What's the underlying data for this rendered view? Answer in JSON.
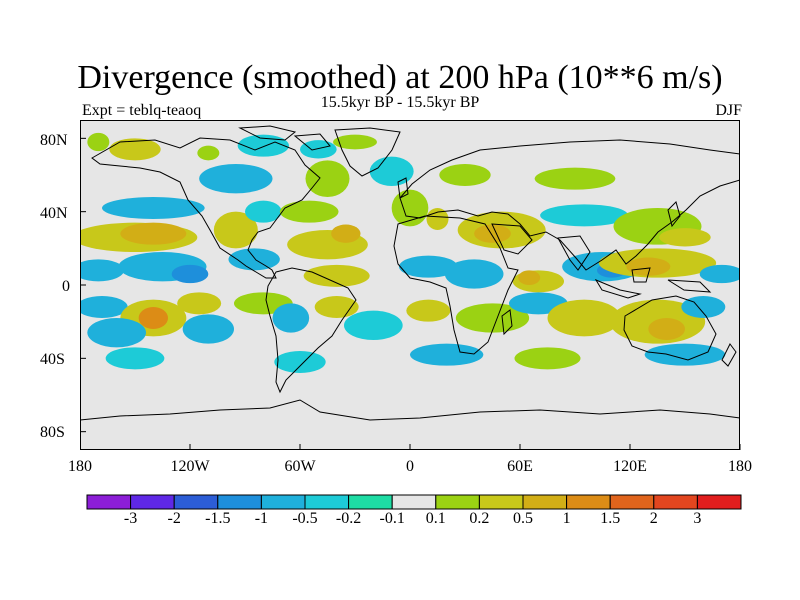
{
  "title": "Divergence (smoothed) at 200 hPa (10**6 m/s)",
  "subtitle": "15.5kyr BP - 15.5kyr BP",
  "left_label": "Expt = teblq-teaoq",
  "right_label": "DJF",
  "lat_ticks": [
    "80N",
    "40N",
    "0",
    "40S",
    "80S"
  ],
  "lon_ticks": [
    "180",
    "120W",
    "60W",
    "0",
    "60E",
    "120E",
    "180"
  ],
  "colorbar": {
    "colors": [
      "#8c1ed7",
      "#5f28e6",
      "#2c5dd6",
      "#1e8fdb",
      "#1fb0db",
      "#1dcbd7",
      "#1edca4",
      "#e6e6e6",
      "#9bd213",
      "#c8c81a",
      "#d2ae16",
      "#dc8c16",
      "#e0641c",
      "#e2461f",
      "#e11e1e"
    ],
    "labels": [
      "-3",
      "-2",
      "-1.5",
      "-1",
      "-0.5",
      "-0.2",
      "-0.1",
      "0.1",
      "0.2",
      "0.5",
      "1",
      "1.5",
      "2",
      "3"
    ]
  },
  "map_data": {
    "background": "#e6e6e6",
    "blobs": [
      {
        "lon": -170,
        "lat": 78,
        "rx": 6,
        "ry": 5,
        "level": "pos1"
      },
      {
        "lon": -150,
        "lat": 74,
        "rx": 14,
        "ry": 6,
        "level": "pos2"
      },
      {
        "lon": -110,
        "lat": 72,
        "rx": 6,
        "ry": 4,
        "level": "pos1"
      },
      {
        "lon": -80,
        "lat": 76,
        "rx": 14,
        "ry": 6,
        "level": "neg1"
      },
      {
        "lon": -50,
        "lat": 74,
        "rx": 10,
        "ry": 5,
        "level": "neg1"
      },
      {
        "lon": -30,
        "lat": 78,
        "rx": 12,
        "ry": 4,
        "level": "pos1"
      },
      {
        "lon": -95,
        "lat": 58,
        "rx": 20,
        "ry": 8,
        "level": "neg2"
      },
      {
        "lon": -45,
        "lat": 58,
        "rx": 12,
        "ry": 10,
        "level": "pos1"
      },
      {
        "lon": -10,
        "lat": 62,
        "rx": 12,
        "ry": 8,
        "level": "neg1"
      },
      {
        "lon": 30,
        "lat": 60,
        "rx": 14,
        "ry": 6,
        "level": "pos1"
      },
      {
        "lon": 90,
        "lat": 58,
        "rx": 22,
        "ry": 6,
        "level": "pos1"
      },
      {
        "lon": -140,
        "lat": 42,
        "rx": 28,
        "ry": 6,
        "level": "neg2"
      },
      {
        "lon": -150,
        "lat": 26,
        "rx": 34,
        "ry": 8,
        "level": "pos2"
      },
      {
        "lon": -140,
        "lat": 28,
        "rx": 18,
        "ry": 6,
        "level": "pos3"
      },
      {
        "lon": -95,
        "lat": 30,
        "rx": 12,
        "ry": 10,
        "level": "pos2"
      },
      {
        "lon": -80,
        "lat": 40,
        "rx": 10,
        "ry": 6,
        "level": "neg1"
      },
      {
        "lon": -55,
        "lat": 40,
        "rx": 16,
        "ry": 6,
        "level": "pos1"
      },
      {
        "lon": -45,
        "lat": 22,
        "rx": 22,
        "ry": 8,
        "level": "pos2"
      },
      {
        "lon": -35,
        "lat": 28,
        "rx": 8,
        "ry": 5,
        "level": "pos3"
      },
      {
        "lon": 0,
        "lat": 42,
        "rx": 10,
        "ry": 10,
        "level": "pos1"
      },
      {
        "lon": 15,
        "lat": 36,
        "rx": 6,
        "ry": 6,
        "level": "pos2"
      },
      {
        "lon": 50,
        "lat": 30,
        "rx": 24,
        "ry": 10,
        "level": "pos2"
      },
      {
        "lon": 45,
        "lat": 28,
        "rx": 10,
        "ry": 5,
        "level": "pos3"
      },
      {
        "lon": 95,
        "lat": 38,
        "rx": 24,
        "ry": 6,
        "level": "neg1"
      },
      {
        "lon": 135,
        "lat": 32,
        "rx": 24,
        "ry": 10,
        "level": "pos1"
      },
      {
        "lon": 150,
        "lat": 26,
        "rx": 14,
        "ry": 5,
        "level": "pos2"
      },
      {
        "lon": -170,
        "lat": 8,
        "rx": 14,
        "ry": 6,
        "level": "neg2"
      },
      {
        "lon": -135,
        "lat": 10,
        "rx": 24,
        "ry": 8,
        "level": "neg2"
      },
      {
        "lon": -120,
        "lat": 6,
        "rx": 10,
        "ry": 5,
        "level": "neg3"
      },
      {
        "lon": -85,
        "lat": 14,
        "rx": 14,
        "ry": 6,
        "level": "neg2"
      },
      {
        "lon": -40,
        "lat": 5,
        "rx": 18,
        "ry": 6,
        "level": "pos2"
      },
      {
        "lon": 10,
        "lat": 10,
        "rx": 16,
        "ry": 6,
        "level": "neg2"
      },
      {
        "lon": 35,
        "lat": 6,
        "rx": 16,
        "ry": 8,
        "level": "neg2"
      },
      {
        "lon": 70,
        "lat": 2,
        "rx": 14,
        "ry": 6,
        "level": "pos2"
      },
      {
        "lon": 65,
        "lat": 4,
        "rx": 6,
        "ry": 4,
        "level": "pos3"
      },
      {
        "lon": 105,
        "lat": 10,
        "rx": 22,
        "ry": 8,
        "level": "neg2"
      },
      {
        "lon": 110,
        "lat": 8,
        "rx": 8,
        "ry": 4,
        "level": "neg3"
      },
      {
        "lon": 135,
        "lat": 12,
        "rx": 32,
        "ry": 8,
        "level": "pos2"
      },
      {
        "lon": 130,
        "lat": 10,
        "rx": 12,
        "ry": 5,
        "level": "pos3"
      },
      {
        "lon": 170,
        "lat": 6,
        "rx": 12,
        "ry": 5,
        "level": "neg2"
      },
      {
        "lon": -168,
        "lat": -12,
        "rx": 14,
        "ry": 6,
        "level": "neg2"
      },
      {
        "lon": -140,
        "lat": -18,
        "rx": 18,
        "ry": 10,
        "level": "pos2"
      },
      {
        "lon": -140,
        "lat": -18,
        "rx": 8,
        "ry": 6,
        "level": "pos4"
      },
      {
        "lon": -160,
        "lat": -26,
        "rx": 16,
        "ry": 8,
        "level": "neg2"
      },
      {
        "lon": -115,
        "lat": -10,
        "rx": 12,
        "ry": 6,
        "level": "pos2"
      },
      {
        "lon": -110,
        "lat": -24,
        "rx": 14,
        "ry": 8,
        "level": "neg2"
      },
      {
        "lon": -80,
        "lat": -10,
        "rx": 16,
        "ry": 6,
        "level": "pos1"
      },
      {
        "lon": -65,
        "lat": -18,
        "rx": 10,
        "ry": 8,
        "level": "neg2"
      },
      {
        "lon": -40,
        "lat": -12,
        "rx": 12,
        "ry": 6,
        "level": "pos2"
      },
      {
        "lon": -20,
        "lat": -22,
        "rx": 16,
        "ry": 8,
        "level": "neg1"
      },
      {
        "lon": 10,
        "lat": -14,
        "rx": 12,
        "ry": 6,
        "level": "pos2"
      },
      {
        "lon": 45,
        "lat": -18,
        "rx": 20,
        "ry": 8,
        "level": "pos1"
      },
      {
        "lon": 70,
        "lat": -10,
        "rx": 16,
        "ry": 6,
        "level": "neg2"
      },
      {
        "lon": 95,
        "lat": -18,
        "rx": 20,
        "ry": 10,
        "level": "pos2"
      },
      {
        "lon": 135,
        "lat": -20,
        "rx": 26,
        "ry": 12,
        "level": "pos2"
      },
      {
        "lon": 140,
        "lat": -24,
        "rx": 10,
        "ry": 6,
        "level": "pos3"
      },
      {
        "lon": 160,
        "lat": -12,
        "rx": 12,
        "ry": 6,
        "level": "neg2"
      },
      {
        "lon": -150,
        "lat": -40,
        "rx": 16,
        "ry": 6,
        "level": "neg1"
      },
      {
        "lon": -60,
        "lat": -42,
        "rx": 14,
        "ry": 6,
        "level": "neg1"
      },
      {
        "lon": 20,
        "lat": -38,
        "rx": 20,
        "ry": 6,
        "level": "neg2"
      },
      {
        "lon": 75,
        "lat": -40,
        "rx": 18,
        "ry": 6,
        "level": "pos1"
      },
      {
        "lon": 150,
        "lat": -38,
        "rx": 22,
        "ry": 6,
        "level": "neg2"
      }
    ]
  }
}
